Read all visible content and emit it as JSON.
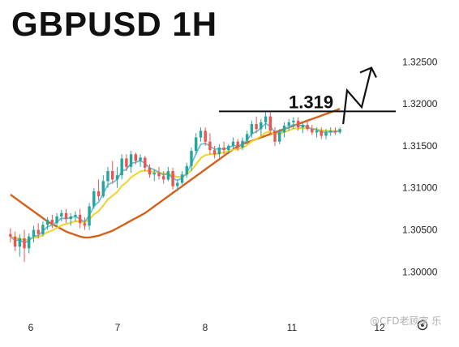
{
  "chart_data": {
    "type": "candlestick",
    "title": "GBPUSD 1H",
    "resistance_label": "1.319",
    "resistance_level": 1.3191,
    "y_ticks": [
      "1.30000",
      "1.30500",
      "1.31000",
      "1.31500",
      "1.32000",
      "1.32500"
    ],
    "y_tick_values": [
      1.3,
      1.305,
      1.31,
      1.315,
      1.32,
      1.325
    ],
    "ylim": [
      1.2955,
      1.3285
    ],
    "x_ticks": [
      "6",
      "7",
      "8",
      "11",
      "12"
    ],
    "candle_count": 72,
    "candles": [
      [
        1.3045,
        1.3052,
        1.3035,
        1.3042
      ],
      [
        1.3042,
        1.3048,
        1.3025,
        1.303
      ],
      [
        1.303,
        1.3045,
        1.3018,
        1.304
      ],
      [
        1.304,
        1.305,
        1.3012,
        1.3028
      ],
      [
        1.3028,
        1.3046,
        1.3022,
        1.3042
      ],
      [
        1.3042,
        1.3055,
        1.3035,
        1.305
      ],
      [
        1.305,
        1.3058,
        1.304,
        1.3045
      ],
      [
        1.3045,
        1.306,
        1.3042,
        1.3056
      ],
      [
        1.3056,
        1.3065,
        1.305,
        1.3062
      ],
      [
        1.3062,
        1.3068,
        1.3052,
        1.3058
      ],
      [
        1.3058,
        1.307,
        1.3054,
        1.3066
      ],
      [
        1.3066,
        1.3074,
        1.306,
        1.307
      ],
      [
        1.307,
        1.3075,
        1.3058,
        1.3063
      ],
      [
        1.3063,
        1.307,
        1.3055,
        1.3066
      ],
      [
        1.3066,
        1.3072,
        1.306,
        1.3068
      ],
      [
        1.3068,
        1.3075,
        1.3052,
        1.3058
      ],
      [
        1.3058,
        1.3065,
        1.305,
        1.3055
      ],
      [
        1.3055,
        1.3082,
        1.305,
        1.3078
      ],
      [
        1.3078,
        1.31,
        1.3075,
        1.3096
      ],
      [
        1.3096,
        1.311,
        1.3085,
        1.309
      ],
      [
        1.309,
        1.3115,
        1.3088,
        1.3108
      ],
      [
        1.3108,
        1.3125,
        1.31,
        1.312
      ],
      [
        1.312,
        1.3132,
        1.3105,
        1.311
      ],
      [
        1.311,
        1.3125,
        1.31,
        1.3115
      ],
      [
        1.3115,
        1.314,
        1.311,
        1.3135
      ],
      [
        1.3135,
        1.314,
        1.312,
        1.3125
      ],
      [
        1.3125,
        1.3144,
        1.3118,
        1.314
      ],
      [
        1.314,
        1.3142,
        1.3128,
        1.3132
      ],
      [
        1.3132,
        1.314,
        1.3125,
        1.3136
      ],
      [
        1.3136,
        1.3138,
        1.312,
        1.3124
      ],
      [
        1.3124,
        1.3128,
        1.3112,
        1.3116
      ],
      [
        1.3116,
        1.3122,
        1.3108,
        1.3118
      ],
      [
        1.3118,
        1.3125,
        1.311,
        1.3114
      ],
      [
        1.3114,
        1.312,
        1.3105,
        1.311
      ],
      [
        1.311,
        1.3125,
        1.3108,
        1.312
      ],
      [
        1.312,
        1.3124,
        1.3098,
        1.3102
      ],
      [
        1.3102,
        1.311,
        1.3096,
        1.3106
      ],
      [
        1.3106,
        1.312,
        1.3104,
        1.3116
      ],
      [
        1.3116,
        1.313,
        1.3112,
        1.3126
      ],
      [
        1.3126,
        1.3148,
        1.312,
        1.3144
      ],
      [
        1.3144,
        1.3165,
        1.314,
        1.316
      ],
      [
        1.316,
        1.3172,
        1.3155,
        1.3168
      ],
      [
        1.3168,
        1.3172,
        1.315,
        1.3155
      ],
      [
        1.3155,
        1.3165,
        1.314,
        1.3145
      ],
      [
        1.3145,
        1.315,
        1.3135,
        1.314
      ],
      [
        1.314,
        1.3152,
        1.3136,
        1.3148
      ],
      [
        1.3148,
        1.3155,
        1.314,
        1.3145
      ],
      [
        1.3145,
        1.3152,
        1.314,
        1.315
      ],
      [
        1.315,
        1.316,
        1.3146,
        1.3155
      ],
      [
        1.3155,
        1.3158,
        1.3144,
        1.3148
      ],
      [
        1.3148,
        1.316,
        1.3145,
        1.3156
      ],
      [
        1.3156,
        1.3168,
        1.3152,
        1.3164
      ],
      [
        1.3164,
        1.318,
        1.316,
        1.3176
      ],
      [
        1.3176,
        1.3185,
        1.3165,
        1.317
      ],
      [
        1.317,
        1.3182,
        1.3162,
        1.3178
      ],
      [
        1.3178,
        1.319,
        1.317,
        1.3185
      ],
      [
        1.3185,
        1.319,
        1.3165,
        1.3168
      ],
      [
        1.3168,
        1.3172,
        1.315,
        1.3155
      ],
      [
        1.3155,
        1.317,
        1.3152,
        1.3166
      ],
      [
        1.3166,
        1.3178,
        1.316,
        1.3174
      ],
      [
        1.3174,
        1.3182,
        1.3168,
        1.3178
      ],
      [
        1.3178,
        1.3184,
        1.317,
        1.318
      ],
      [
        1.318,
        1.3184,
        1.3168,
        1.3172
      ],
      [
        1.3172,
        1.3178,
        1.3165,
        1.3175
      ],
      [
        1.3175,
        1.318,
        1.3168,
        1.317
      ],
      [
        1.317,
        1.3175,
        1.3163,
        1.3166
      ],
      [
        1.3166,
        1.3172,
        1.316,
        1.3168
      ],
      [
        1.3168,
        1.3172,
        1.3158,
        1.3162
      ],
      [
        1.3162,
        1.317,
        1.3158,
        1.3166
      ],
      [
        1.3166,
        1.3172,
        1.3162,
        1.3168
      ],
      [
        1.3168,
        1.3172,
        1.3163,
        1.3166
      ],
      [
        1.3166,
        1.3172,
        1.3164,
        1.317
      ]
    ],
    "ma_fast_color": "#5bbcd6",
    "ma_mid_color": "#f2d22a",
    "ma_slow_color": "#d4601a",
    "ma_slow": [
      1.3092,
      1.3088,
      1.3084,
      1.308,
      1.3076,
      1.3072,
      1.3068,
      1.3064,
      1.306,
      1.3057,
      1.3054,
      1.3051,
      1.3048,
      1.3046,
      1.3044,
      1.3042,
      1.3041,
      1.3041,
      1.3042,
      1.3043,
      1.3045,
      1.3047,
      1.3049,
      1.3052,
      1.3055,
      1.3058,
      1.3061,
      1.3064,
      1.3067,
      1.307,
      1.3074,
      1.3078,
      1.3082,
      1.3086,
      1.309,
      1.3094,
      1.3098,
      1.3102,
      1.3106,
      1.311,
      1.3114,
      1.3118,
      1.3122,
      1.3126,
      1.313,
      1.3134,
      1.3138,
      1.3142,
      1.3146,
      1.3149,
      1.3152,
      1.3154,
      1.3156,
      1.3158,
      1.316,
      1.3162,
      1.3164,
      1.3166,
      1.3168,
      1.317,
      1.3172,
      1.3174,
      1.3176,
      1.3178,
      1.318,
      1.3182,
      1.3184,
      1.3186,
      1.3188,
      1.319,
      1.3192,
      1.3194
    ],
    "up_color": "#26a69a",
    "down_color": "#ef5350"
  },
  "watermark": "@CFD老顾家 乐"
}
